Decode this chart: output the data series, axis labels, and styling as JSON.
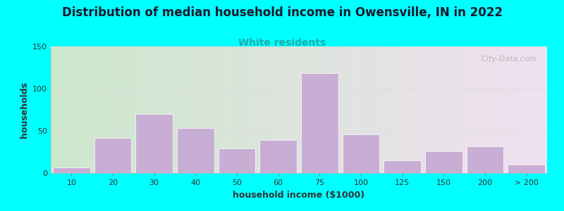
{
  "title": "Distribution of median household income in Owensville, IN in 2022",
  "subtitle": "White residents",
  "xlabel": "household income ($1000)",
  "ylabel": "households",
  "background_color": "#00FFFF",
  "plot_bg_gradient_left": "#cce8cc",
  "plot_bg_gradient_right": "#f0e0f0",
  "bar_color": "#c8aed4",
  "bar_edgecolor": "#ffffff",
  "bar_linewidth": 0.5,
  "ylim": [
    0,
    150
  ],
  "yticks": [
    0,
    50,
    100,
    150
  ],
  "x_labels": [
    "10",
    "20",
    "30",
    "40",
    "50",
    "60",
    "75",
    "100",
    "125",
    "150",
    "200",
    "> 200"
  ],
  "values": [
    7,
    42,
    70,
    53,
    29,
    39,
    118,
    46,
    15,
    26,
    32,
    10
  ],
  "title_fontsize": 12,
  "subtitle_fontsize": 10,
  "subtitle_color": "#22AAAA",
  "axis_label_fontsize": 9,
  "tick_fontsize": 8,
  "watermark_text": "City-Data.com",
  "watermark_color": "#aaaaaa",
  "grid_color": "#dddddd"
}
